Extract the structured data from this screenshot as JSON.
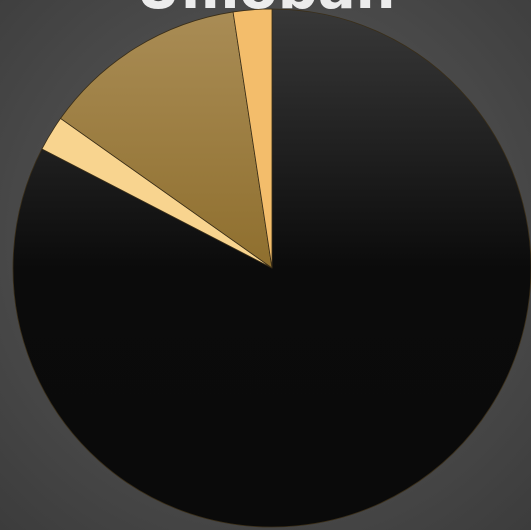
{
  "chart_data": {
    "type": "pie",
    "title": "Umoban",
    "start_angle_deg": 0,
    "direction": "clockwise",
    "slices": [
      {
        "value": 82.6,
        "color": "#0d0d0d"
      },
      {
        "value": 2.2,
        "color": "#f8d48f"
      },
      {
        "value": 12.8,
        "color": "#a2823f"
      },
      {
        "value": 2.4,
        "color": "#f3bd6b"
      }
    ]
  }
}
